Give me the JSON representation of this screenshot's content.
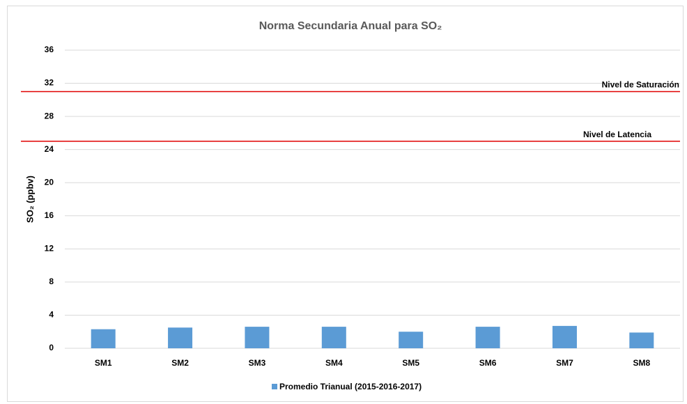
{
  "chart_data": {
    "type": "bar",
    "title": "Norma Secundaria Anual para SO₂",
    "y_label": "SO₂ (ppbv)",
    "categories": [
      "SM1",
      "SM2",
      "SM3",
      "SM4",
      "SM5",
      "SM6",
      "SM7",
      "SM8"
    ],
    "series": [
      {
        "name": "Promedio Trianual (2015-2016-2017)",
        "color": "#5b9bd5",
        "values": [
          2.3,
          2.5,
          2.6,
          2.6,
          2.0,
          2.6,
          2.7,
          1.9
        ]
      }
    ],
    "reference_lines": [
      {
        "label": "Nivel de Saturación",
        "value": 31,
        "color": "#e00000"
      },
      {
        "label": "Nivel de Latencia",
        "value": 25,
        "color": "#e00000"
      }
    ],
    "ylim": [
      0,
      36
    ],
    "yticks": [
      0,
      4,
      8,
      12,
      16,
      20,
      24,
      28,
      32,
      36
    ],
    "grid": true,
    "legend": "bottom"
  }
}
